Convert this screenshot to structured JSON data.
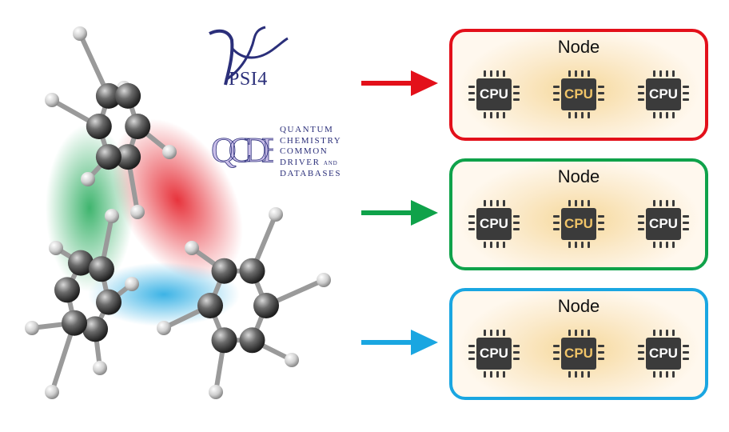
{
  "logos": {
    "psi4": "PSI4",
    "qcdb": {
      "letters": "QCDB",
      "lines": [
        "QUANTUM",
        "CHEMISTRY",
        "COMMON",
        "DRIVER",
        "DATABASES"
      ],
      "and_word": "AND"
    }
  },
  "nodes": [
    {
      "label": "Node",
      "arrow_color": "#e3101a",
      "border_color": "#e3101a",
      "cpus": [
        {
          "label": "CPU"
        },
        {
          "label": "CPU"
        },
        {
          "label": "CPU"
        }
      ]
    },
    {
      "label": "Node",
      "arrow_color": "#0fa24a",
      "border_color": "#0fa24a",
      "cpus": [
        {
          "label": "CPU"
        },
        {
          "label": "CPU"
        },
        {
          "label": "CPU"
        }
      ]
    },
    {
      "label": "Node",
      "arrow_color": "#1aa6e1",
      "border_color": "#1aa6e1",
      "cpus": [
        {
          "label": "CPU"
        },
        {
          "label": "CPU"
        },
        {
          "label": "CPU"
        }
      ]
    }
  ],
  "colors": {
    "red_fragment": "#e3101a",
    "green_fragment": "#0fa24a",
    "blue_fragment": "#1aa6e1",
    "cpu_body": "#3b3b3b",
    "cpu_highlight": "#f0c468"
  }
}
